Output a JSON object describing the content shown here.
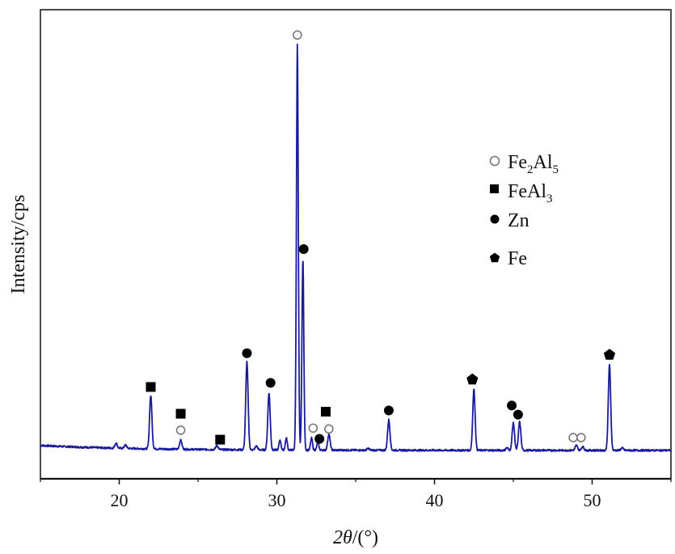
{
  "chart_data": {
    "type": "line",
    "xlabel": "2θ/(°)",
    "xlabel_parts": {
      "theta": "2θ",
      "unit": "/(°)"
    },
    "ylabel": "Intensity/cps",
    "xlim": [
      15,
      55
    ],
    "ylim": [
      0,
      100
    ],
    "x_ticks": [
      "20",
      "30",
      "40",
      "50"
    ],
    "x_tick_values": [
      20,
      30,
      40,
      50
    ],
    "y_ticks_shown": false,
    "grid": false,
    "line_color": "#1a1a9c",
    "baseline": 1.6,
    "peaks": [
      {
        "x": 19.8,
        "y": 2.8
      },
      {
        "x": 20.4,
        "y": 2.4
      },
      {
        "x": 22.0,
        "y": 14.5
      },
      {
        "x": 23.9,
        "y": 3.8
      },
      {
        "x": 26.2,
        "y": 2.6
      },
      {
        "x": 28.1,
        "y": 23.0
      },
      {
        "x": 28.7,
        "y": 2.5
      },
      {
        "x": 29.5,
        "y": 15.5
      },
      {
        "x": 30.2,
        "y": 4.0
      },
      {
        "x": 30.6,
        "y": 4.5
      },
      {
        "x": 31.3,
        "y": 100.0
      },
      {
        "x": 31.65,
        "y": 48.0
      },
      {
        "x": 32.2,
        "y": 4.5
      },
      {
        "x": 32.6,
        "y": 3.5
      },
      {
        "x": 33.3,
        "y": 5.5
      },
      {
        "x": 35.8,
        "y": 2.0
      },
      {
        "x": 37.1,
        "y": 9.0
      },
      {
        "x": 42.5,
        "y": 16.5
      },
      {
        "x": 44.6,
        "y": 2.2
      },
      {
        "x": 45.0,
        "y": 8.2
      },
      {
        "x": 45.4,
        "y": 8.5
      },
      {
        "x": 49.0,
        "y": 2.8
      },
      {
        "x": 49.4,
        "y": 2.5
      },
      {
        "x": 51.1,
        "y": 22.5
      },
      {
        "x": 51.9,
        "y": 2.2
      }
    ],
    "series": [
      {
        "name": "Fe2Al5",
        "marker": "open-circle",
        "label_main": "Fe",
        "label_sub1": "2",
        "label_mid": "Al",
        "label_sub2": "5"
      },
      {
        "name": "FeAl3",
        "marker": "square",
        "label_main": "FeAl",
        "label_sub1": "3"
      },
      {
        "name": "Zn",
        "marker": "filled-circle",
        "label_main": "Zn"
      },
      {
        "name": "Fe",
        "marker": "pentagon",
        "label_main": "Fe"
      }
    ],
    "markers": [
      {
        "x": 22.0,
        "y": 17.0,
        "series": "FeAl3"
      },
      {
        "x": 23.9,
        "y": 10.5,
        "series": "FeAl3"
      },
      {
        "x": 23.9,
        "y": 6.5,
        "series": "Fe2Al5"
      },
      {
        "x": 26.4,
        "y": 4.2,
        "series": "FeAl3"
      },
      {
        "x": 28.1,
        "y": 25.2,
        "series": "Zn"
      },
      {
        "x": 29.6,
        "y": 18.0,
        "series": "Zn"
      },
      {
        "x": 31.3,
        "y": 102.5,
        "series": "Fe2Al5"
      },
      {
        "x": 31.7,
        "y": 50.5,
        "series": "Zn"
      },
      {
        "x": 32.3,
        "y": 7.0,
        "series": "Fe2Al5"
      },
      {
        "x": 32.7,
        "y": 4.4,
        "series": "Zn"
      },
      {
        "x": 33.1,
        "y": 11.0,
        "series": "FeAl3"
      },
      {
        "x": 33.3,
        "y": 6.8,
        "series": "Fe2Al5"
      },
      {
        "x": 37.1,
        "y": 11.3,
        "series": "Zn"
      },
      {
        "x": 42.4,
        "y": 18.8,
        "series": "Fe"
      },
      {
        "x": 44.9,
        "y": 12.5,
        "series": "Zn"
      },
      {
        "x": 45.3,
        "y": 10.3,
        "series": "Zn"
      },
      {
        "x": 48.8,
        "y": 4.7,
        "series": "Fe2Al5"
      },
      {
        "x": 49.3,
        "y": 4.7,
        "series": "Fe2Al5"
      },
      {
        "x": 51.1,
        "y": 24.8,
        "series": "Fe"
      }
    ]
  }
}
